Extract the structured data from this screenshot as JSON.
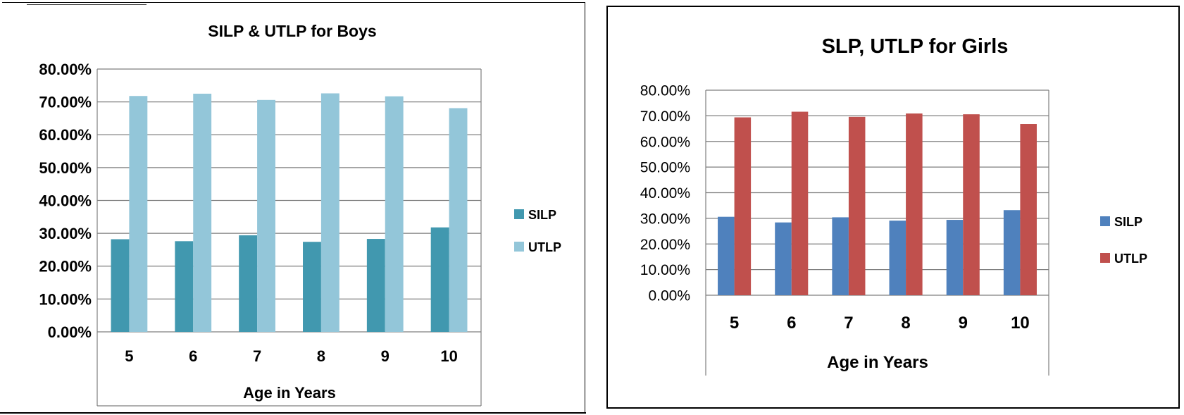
{
  "chart_data": [
    {
      "type": "bar",
      "title": "SILP & UTLP for Boys",
      "xlabel": "Age in Years",
      "ylabel": "",
      "categories": [
        "5",
        "6",
        "7",
        "8",
        "9",
        "10"
      ],
      "yticks": [
        "0.00%",
        "10.00%",
        "20.00%",
        "30.00%",
        "40.00%",
        "50.00%",
        "60.00%",
        "70.00%",
        "80.00%"
      ],
      "ylim": [
        0,
        80
      ],
      "grid": true,
      "legend_position": "right",
      "series": [
        {
          "name": "SILP",
          "color": "#4198AF",
          "values": [
            28.2,
            27.6,
            29.4,
            27.4,
            28.3,
            31.8
          ]
        },
        {
          "name": "UTLP",
          "color": "#93C6D9",
          "values": [
            71.8,
            72.5,
            70.6,
            72.6,
            71.7,
            68.1
          ]
        }
      ]
    },
    {
      "type": "bar",
      "title": "SLP, UTLP for Girls",
      "xlabel": "Age in Years",
      "ylabel": "",
      "categories": [
        "5",
        "6",
        "7",
        "8",
        "9",
        "10"
      ],
      "yticks": [
        "0.00%",
        "10.00%",
        "20.00%",
        "30.00%",
        "40.00%",
        "50.00%",
        "60.00%",
        "70.00%",
        "80.00%"
      ],
      "ylim": [
        0,
        80
      ],
      "grid": true,
      "legend_position": "right",
      "series": [
        {
          "name": "SILP",
          "color": "#4F81BD",
          "values": [
            30.6,
            28.4,
            30.4,
            29.1,
            29.4,
            33.2
          ]
        },
        {
          "name": "UTLP",
          "color": "#C0504D",
          "values": [
            69.4,
            71.6,
            69.6,
            70.9,
            70.6,
            66.8
          ]
        }
      ]
    }
  ]
}
